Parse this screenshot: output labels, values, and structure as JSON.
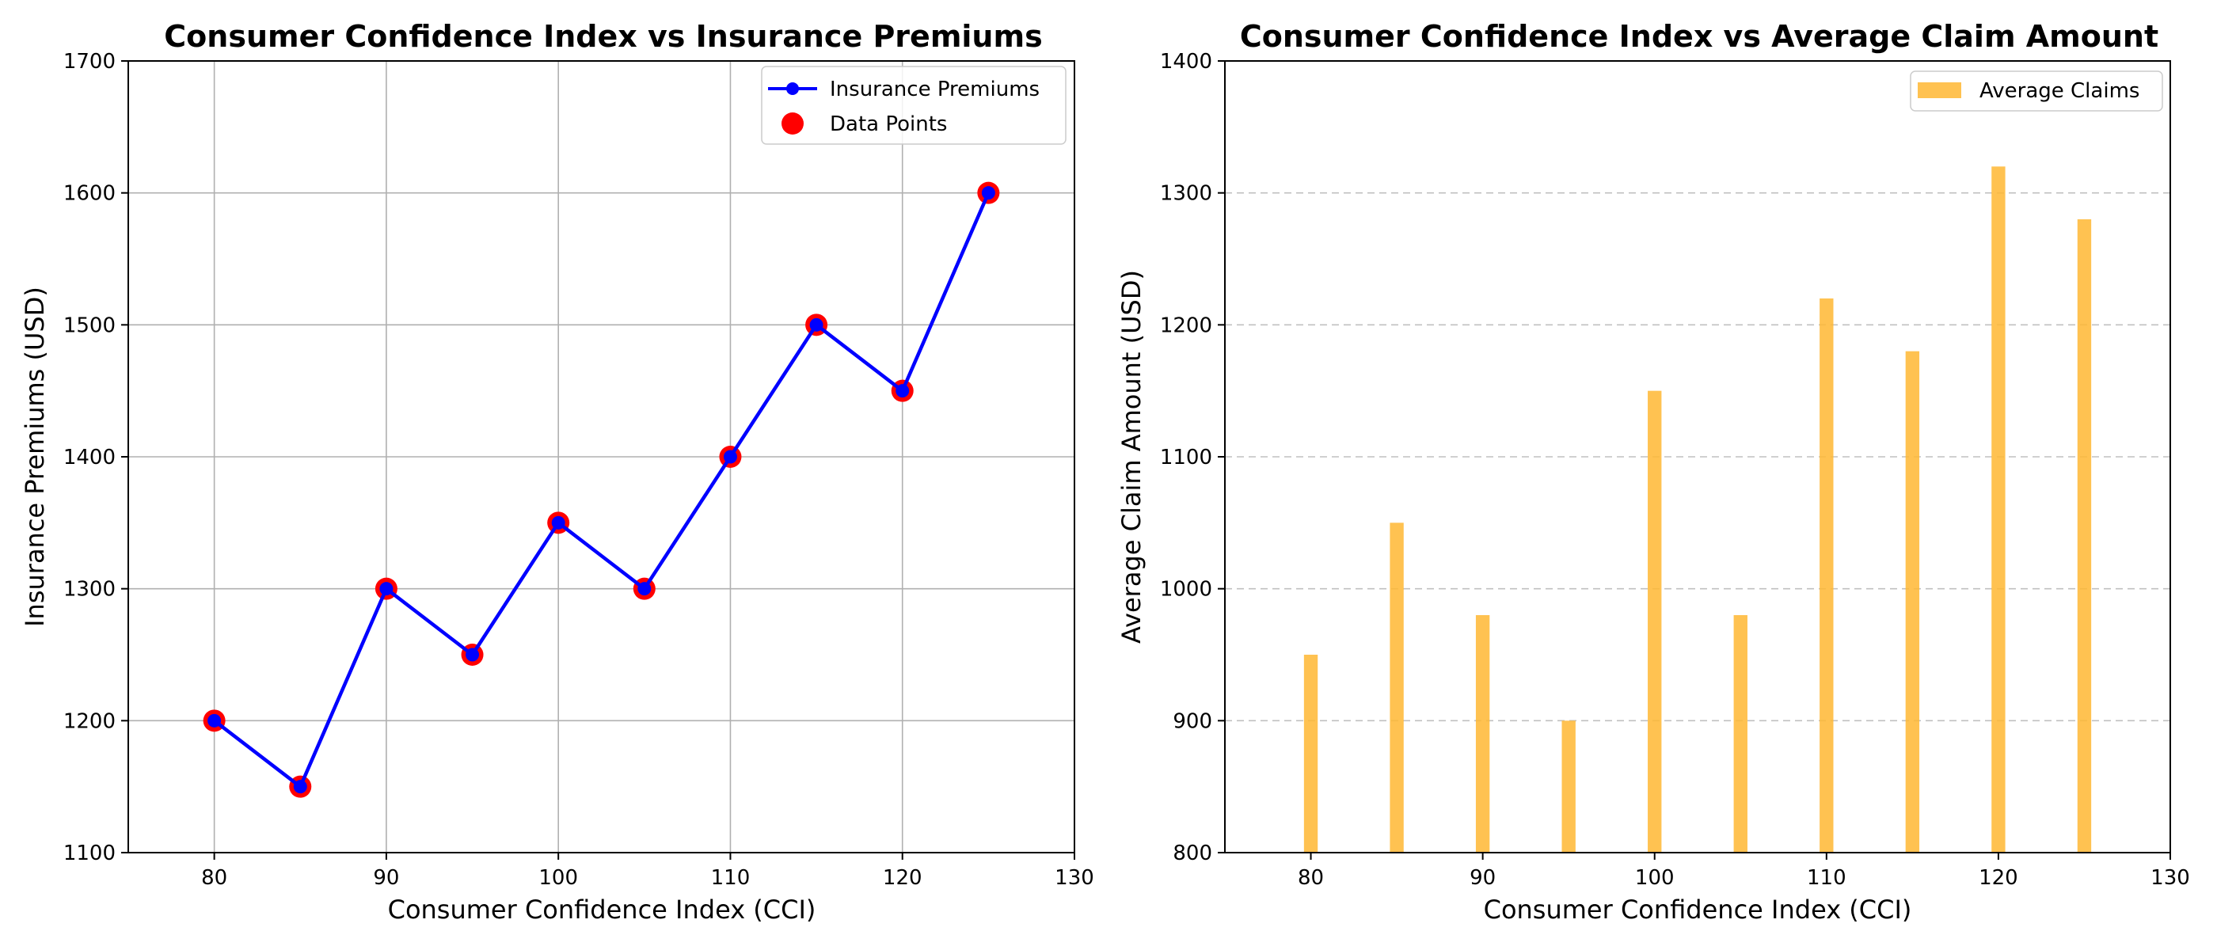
{
  "chart_data": [
    {
      "type": "line",
      "title": "Consumer Confidence Index vs Insurance Premiums",
      "xlabel": "Consumer Confidence Index (CCI)",
      "ylabel": "Insurance Premiums (USD)",
      "xlim": [
        75,
        130
      ],
      "ylim": [
        1100,
        1700
      ],
      "xticks": [
        80,
        90,
        100,
        110,
        120,
        130
      ],
      "yticks": [
        1100,
        1200,
        1300,
        1400,
        1500,
        1600,
        1700
      ],
      "grid": "both",
      "legend_position": "upper right",
      "x": [
        80,
        85,
        90,
        95,
        100,
        105,
        110,
        115,
        120,
        125
      ],
      "series": [
        {
          "name": "Insurance Premiums",
          "kind": "line-with-markers",
          "color": "#0000ff",
          "values": [
            1200,
            1150,
            1300,
            1250,
            1350,
            1300,
            1400,
            1500,
            1450,
            1600
          ]
        },
        {
          "name": "Data Points",
          "kind": "scatter",
          "color": "#ff0000",
          "values": [
            1200,
            1150,
            1300,
            1250,
            1350,
            1300,
            1400,
            1500,
            1450,
            1600
          ]
        }
      ]
    },
    {
      "type": "bar",
      "title": "Consumer Confidence Index vs Average Claim Amount",
      "xlabel": "Consumer Confidence Index (CCI)",
      "ylabel": "Average Claim Amount (USD)",
      "xlim": [
        75,
        130
      ],
      "ylim": [
        800,
        1400
      ],
      "xticks": [
        80,
        90,
        100,
        110,
        120,
        130
      ],
      "yticks": [
        800,
        900,
        1000,
        1100,
        1200,
        1300,
        1400
      ],
      "grid": "y-dashed",
      "legend_position": "upper right",
      "x": [
        80,
        85,
        90,
        95,
        100,
        105,
        110,
        115,
        120,
        125
      ],
      "series": [
        {
          "name": "Average Claims",
          "color": "#ffb732",
          "values": [
            950,
            1050,
            980,
            900,
            1150,
            980,
            1220,
            1180,
            1320,
            1280
          ]
        }
      ]
    }
  ]
}
